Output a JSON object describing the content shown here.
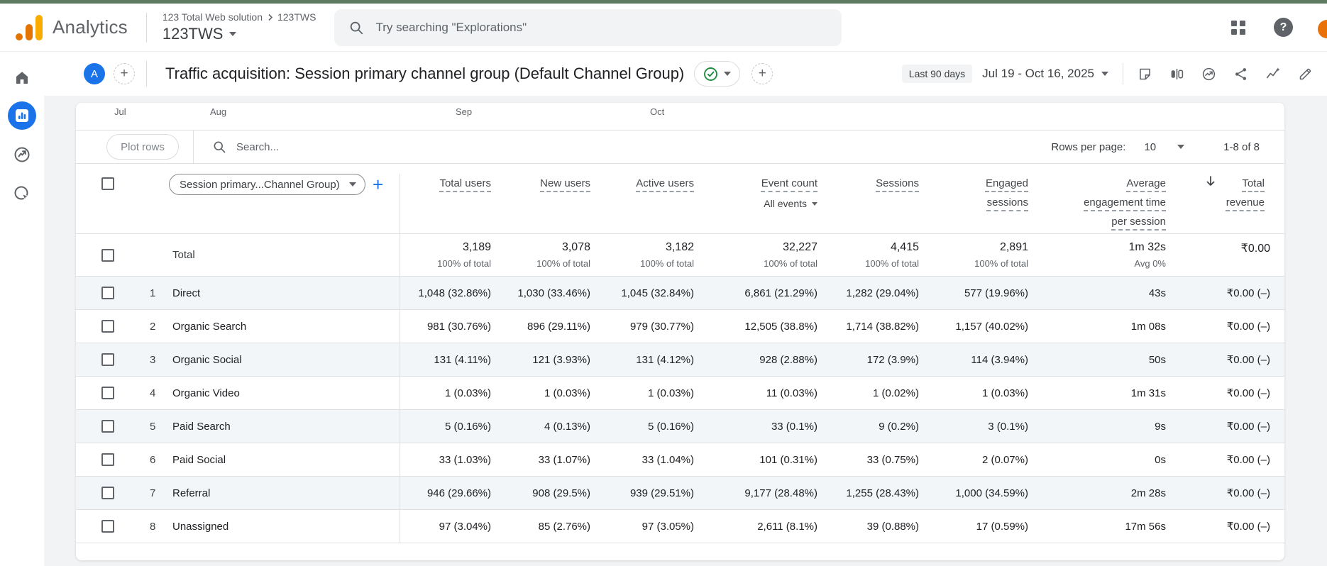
{
  "app_bar": {
    "product_name": "Analytics",
    "breadcrumb_account": "123 Total Web solution",
    "breadcrumb_property": "123TWS",
    "property_name": "123TWS",
    "search_placeholder": "Try searching \"Explorations\"",
    "icons": [
      "apps-grid-icon",
      "help-icon",
      "avatar"
    ]
  },
  "nav": {
    "items": [
      {
        "name": "home",
        "active": false
      },
      {
        "name": "reports",
        "active": true
      },
      {
        "name": "explore",
        "active": false
      },
      {
        "name": "advertising",
        "active": false
      }
    ]
  },
  "report_header": {
    "workspace_letter": "A",
    "title": "Traffic acquisition: Session primary channel group (Default Channel Group)",
    "date_preset": "Last 90 days",
    "date_range": "Jul 19 - Oct 16, 2025",
    "action_icons": [
      "note-icon",
      "comparison-icon",
      "monitoring-icon",
      "share-icon",
      "insights-icon",
      "edit-icon"
    ]
  },
  "chart": {
    "axis_labels": [
      "Jul",
      "Aug",
      "Sep",
      "Oct"
    ]
  },
  "toolbar": {
    "plot_rows_label": "Plot rows",
    "search_placeholder": "Search...",
    "rows_per_page_label": "Rows per page:",
    "rows_per_page_value": "10",
    "range_label": "1-8 of 8"
  },
  "table": {
    "dimension_label": "Session primary...Channel Group)",
    "add_button": "+",
    "columns": [
      {
        "label": "Total users"
      },
      {
        "label": "New users"
      },
      {
        "label": "Active users"
      },
      {
        "label": "Event count",
        "filter": "All events"
      },
      {
        "label": "Sessions"
      },
      {
        "label": "Engaged\nsessions"
      },
      {
        "label": "Average\nengagement time\nper session"
      },
      {
        "label": "Total\nrevenue",
        "sorted": "descending"
      }
    ],
    "totals": {
      "label": "Total",
      "cells": [
        {
          "value": "3,189",
          "sub": "100% of total"
        },
        {
          "value": "3,078",
          "sub": "100% of total"
        },
        {
          "value": "3,182",
          "sub": "100% of total"
        },
        {
          "value": "32,227",
          "sub": "100% of total"
        },
        {
          "value": "4,415",
          "sub": "100% of total"
        },
        {
          "value": "2,891",
          "sub": "100% of total"
        },
        {
          "value": "1m 32s",
          "sub": "Avg 0%"
        },
        {
          "value": "₹0.00",
          "sub": ""
        }
      ]
    },
    "rows": [
      {
        "num": "1",
        "channel": "Direct",
        "cells": [
          "1,048 (32.86%)",
          "1,030 (33.46%)",
          "1,045 (32.84%)",
          "6,861 (21.29%)",
          "1,282 (29.04%)",
          "577 (19.96%)",
          "43s",
          "₹0.00 (–)"
        ]
      },
      {
        "num": "2",
        "channel": "Organic Search",
        "cells": [
          "981 (30.76%)",
          "896 (29.11%)",
          "979 (30.77%)",
          "12,505 (38.8%)",
          "1,714 (38.82%)",
          "1,157 (40.02%)",
          "1m 08s",
          "₹0.00 (–)"
        ]
      },
      {
        "num": "3",
        "channel": "Organic Social",
        "cells": [
          "131 (4.11%)",
          "121 (3.93%)",
          "131 (4.12%)",
          "928 (2.88%)",
          "172 (3.9%)",
          "114 (3.94%)",
          "50s",
          "₹0.00 (–)"
        ]
      },
      {
        "num": "4",
        "channel": "Organic Video",
        "cells": [
          "1 (0.03%)",
          "1 (0.03%)",
          "1 (0.03%)",
          "11 (0.03%)",
          "1 (0.02%)",
          "1 (0.03%)",
          "1m 31s",
          "₹0.00 (–)"
        ]
      },
      {
        "num": "5",
        "channel": "Paid Search",
        "cells": [
          "5 (0.16%)",
          "4 (0.13%)",
          "5 (0.16%)",
          "33 (0.1%)",
          "9 (0.2%)",
          "3 (0.1%)",
          "9s",
          "₹0.00 (–)"
        ]
      },
      {
        "num": "6",
        "channel": "Paid Social",
        "cells": [
          "33 (1.03%)",
          "33 (1.07%)",
          "33 (1.04%)",
          "101 (0.31%)",
          "33 (0.75%)",
          "2 (0.07%)",
          "0s",
          "₹0.00 (–)"
        ]
      },
      {
        "num": "7",
        "channel": "Referral",
        "cells": [
          "946 (29.66%)",
          "908 (29.5%)",
          "939 (29.51%)",
          "9,177 (28.48%)",
          "1,255 (28.43%)",
          "1,000 (34.59%)",
          "2m 28s",
          "₹0.00 (–)"
        ]
      },
      {
        "num": "8",
        "channel": "Unassigned",
        "cells": [
          "97 (3.04%)",
          "85 (2.76%)",
          "97 (3.05%)",
          "2,611 (8.1%)",
          "39 (0.88%)",
          "17 (0.59%)",
          "17m 56s",
          "₹0.00 (–)"
        ]
      }
    ]
  },
  "colors": {
    "accent_blue": "#1a73e8",
    "logo_amber": "#f9ab00",
    "logo_orange": "#e37400",
    "check_green": "#1e8e3e",
    "top_strip_green": "#5d7b60",
    "row_alt": "#f3f6f9"
  }
}
